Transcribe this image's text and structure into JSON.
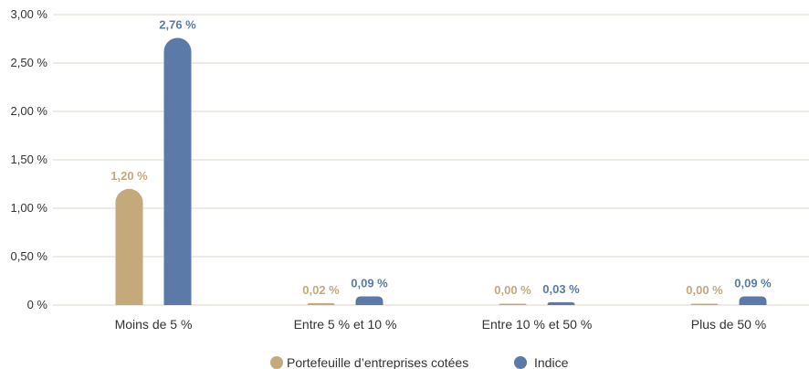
{
  "chart_data": {
    "type": "bar",
    "categories": [
      "Moins de 5 %",
      "Entre 5 % et 10 %",
      "Entre 10 % et 50 %",
      "Plus de 50 %"
    ],
    "series": [
      {
        "name": "Portefeuille d’entreprises cotées",
        "values": [
          1.2,
          0.02,
          0.0,
          0.0
        ],
        "labels": [
          "1,20 %",
          "0,02 %",
          "0,00 %",
          "0,00 %"
        ],
        "color": "#c4a97a"
      },
      {
        "name": "Indice",
        "values": [
          2.76,
          0.09,
          0.03,
          0.09
        ],
        "labels": [
          "2,76 %",
          "0,09 %",
          "0,03 %",
          "0,09 %"
        ],
        "color": "#5b7aa8"
      }
    ],
    "y_ticks": [
      {
        "value": 3.0,
        "label": "3,00 %"
      },
      {
        "value": 2.5,
        "label": "2,50 %"
      },
      {
        "value": 2.0,
        "label": "2,00 %"
      },
      {
        "value": 1.5,
        "label": "1,50 %"
      },
      {
        "value": 1.0,
        "label": "1,00 %"
      },
      {
        "value": 0.5,
        "label": "0,50 %"
      },
      {
        "value": 0.0,
        "label": "0 %"
      }
    ],
    "ylim": [
      0,
      3.0
    ],
    "grid": true,
    "legend_position": "bottom-center"
  }
}
